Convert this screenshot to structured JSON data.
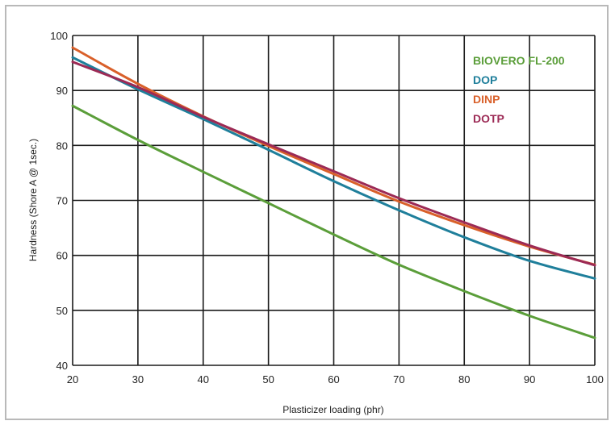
{
  "chart_data": {
    "type": "line",
    "title": "",
    "xlabel": "Plasticizer loading (phr)",
    "ylabel": "Hardness (Shore A @ 1sec.)",
    "xlim": [
      20,
      100
    ],
    "ylim": [
      40,
      100
    ],
    "x_ticks": [
      20,
      30,
      40,
      50,
      60,
      70,
      80,
      90,
      100
    ],
    "y_ticks": [
      40,
      50,
      60,
      70,
      80,
      90,
      100
    ],
    "grid": true,
    "legend_position": "top-right",
    "series": [
      {
        "name": "BIOVERO FL-200",
        "color": "#5b9e3a",
        "x": [
          20,
          30,
          40,
          50,
          60,
          70,
          80,
          90,
          100
        ],
        "y": [
          87.2,
          81.0,
          75.2,
          69.5,
          63.8,
          58.3,
          53.5,
          49.0,
          45.0
        ]
      },
      {
        "name": "DOP",
        "color": "#1f7f9b",
        "x": [
          20,
          30,
          40,
          50,
          60,
          70,
          80,
          90,
          100
        ],
        "y": [
          96.0,
          90.2,
          84.8,
          79.2,
          73.5,
          68.2,
          63.3,
          59.0,
          55.8
        ]
      },
      {
        "name": "DINP",
        "color": "#d9602a",
        "x": [
          20,
          30,
          40,
          50,
          60,
          70,
          80,
          90,
          100
        ],
        "y": [
          97.8,
          91.2,
          85.3,
          79.9,
          74.8,
          69.8,
          65.5,
          61.6,
          58.3
        ]
      },
      {
        "name": "DOTP",
        "color": "#9c2a55",
        "x": [
          20,
          30,
          40,
          50,
          60,
          70,
          80,
          90,
          100
        ],
        "y": [
          95.2,
          90.6,
          85.2,
          80.2,
          75.3,
          70.4,
          66.0,
          61.8,
          58.2
        ]
      }
    ]
  }
}
